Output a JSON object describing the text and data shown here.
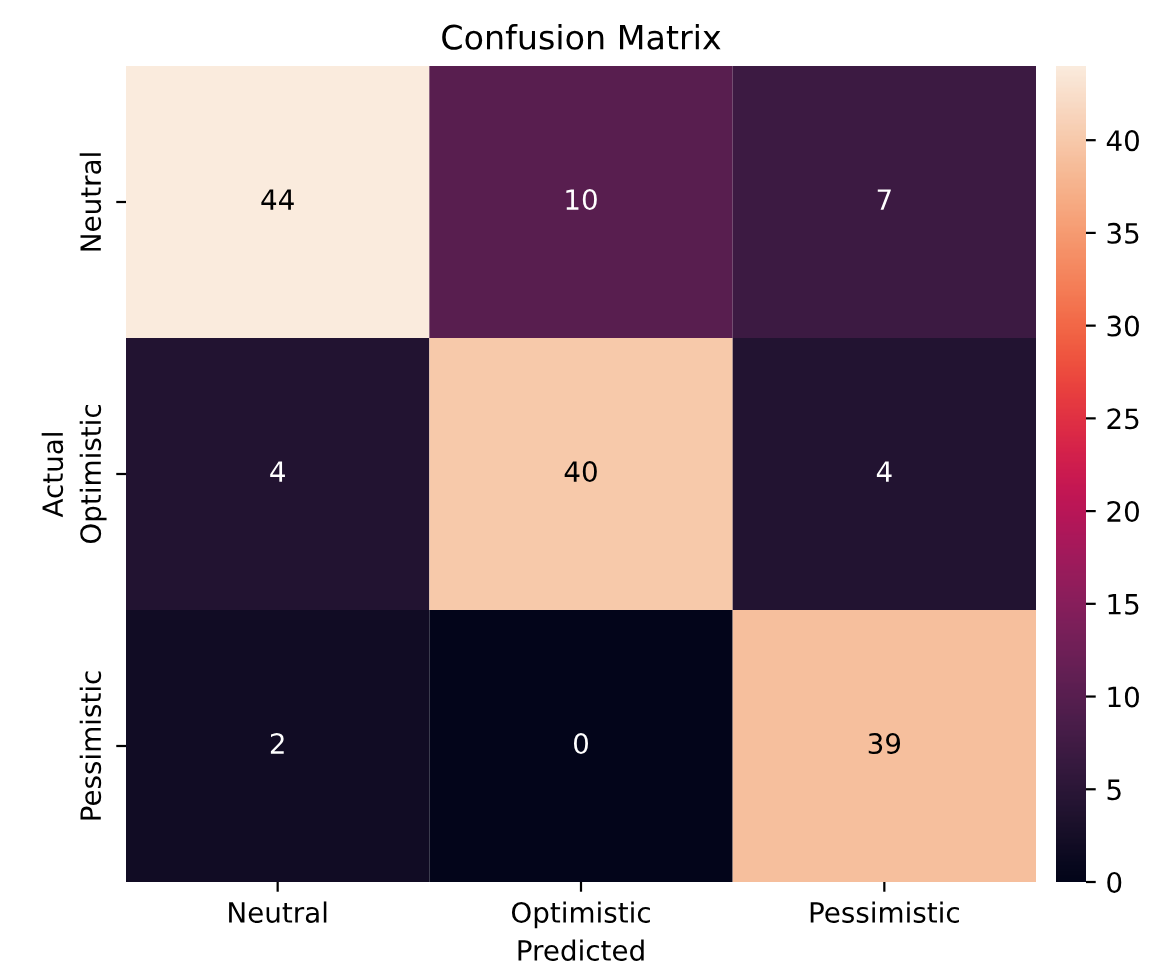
{
  "chart_data": {
    "type": "heatmap",
    "title": "Confusion Matrix",
    "xlabel": "Predicted",
    "ylabel": "Actual",
    "categories": [
      "Neutral",
      "Optimistic",
      "Pessimistic"
    ],
    "y_categories": [
      "Neutral",
      "Optimistic",
      "Pessimistic"
    ],
    "cells": [
      [
        44,
        10,
        7
      ],
      [
        4,
        40,
        4
      ],
      [
        2,
        0,
        39
      ]
    ],
    "clim": [
      0,
      44
    ],
    "cticks": [
      0,
      5,
      10,
      15,
      20,
      25,
      30,
      35,
      40
    ],
    "data_labels": true
  }
}
